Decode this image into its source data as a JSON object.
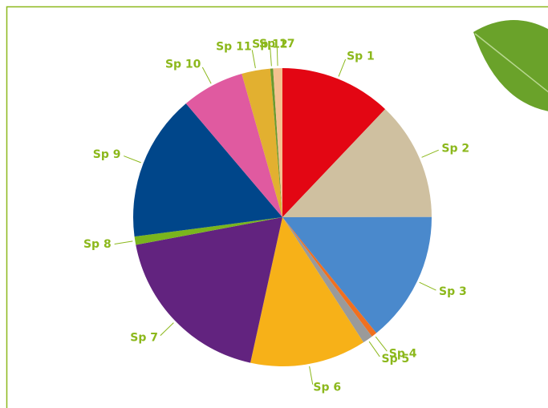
{
  "chart_data": {
    "type": "pie",
    "categories": [
      "Sp 1",
      "Sp 2",
      "Sp 3",
      "Sp 4",
      "Sp 5",
      "Sp 6",
      "Sp 7",
      "Sp 8",
      "Sp 9",
      "Sp 10",
      "Sp 11",
      "Sp 12",
      "Sp 17"
    ],
    "values": [
      12.1,
      12.9,
      14.2,
      0.6,
      1.1,
      12.6,
      18.6,
      0.9,
      15.9,
      6.8,
      3.1,
      0.3,
      1.0
    ],
    "colors": [
      "#e30613",
      "#cfc0a0",
      "#4a89cc",
      "#f07020",
      "#9a9a9a",
      "#f7b118",
      "#62237f",
      "#7ab51d",
      "#00468a",
      "#e05aa0",
      "#e2b030",
      "#6a9a30",
      "#f4c090"
    ]
  }
}
